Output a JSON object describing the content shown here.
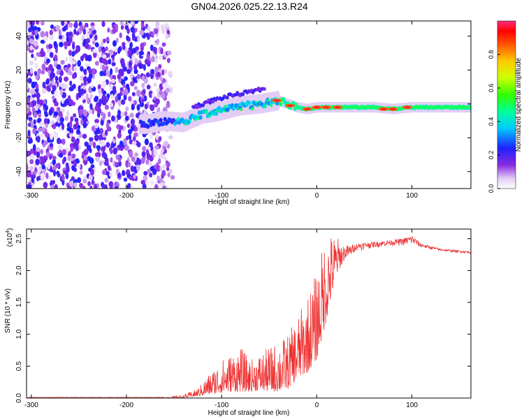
{
  "title": "GN04.2026.025.22.13.R24",
  "chart_data": [
    {
      "type": "heatmap",
      "name": "spectrogram",
      "xlabel": "Height of straight line (km)",
      "ylabel": "Frequency (Hz)",
      "xlim": [
        -305,
        162
      ],
      "ylim": [
        -50,
        49
      ],
      "xticks": [
        -300,
        -200,
        -100,
        0,
        100
      ],
      "yticks": [
        -40,
        -20,
        0,
        20,
        40
      ],
      "colorbar": {
        "label": "Normalized spectral amplitude",
        "range": [
          0,
          1
        ],
        "ticks": [
          0.0,
          0.2,
          0.4,
          0.6,
          0.8
        ],
        "tick_labels": [
          "0.0",
          "0.2",
          "0.4",
          "0.6",
          "0.8"
        ]
      },
      "noise_region_x": [
        -305,
        -150
      ],
      "trend": {
        "x": [
          -180,
          -160,
          -140,
          -120,
          -100,
          -80,
          -60,
          -40,
          -30,
          -20,
          -10,
          0,
          20,
          40,
          60,
          80,
          100,
          120,
          140,
          162
        ],
        "y": [
          -12,
          -10,
          -11,
          -6,
          -4,
          -1,
          0,
          2,
          0,
          -2,
          -3,
          -2,
          -2,
          -2,
          -2,
          -3,
          -2,
          -2,
          -2,
          -2
        ]
      },
      "secondary_trend": {
        "x": [
          -130,
          -110,
          -90,
          -70,
          -55
        ],
        "y": [
          -2,
          2,
          5,
          7,
          9
        ]
      },
      "hot_spots": [
        {
          "x": -10,
          "y": -3
        },
        {
          "x": 0,
          "y": -2
        },
        {
          "x": 10,
          "y": -2
        },
        {
          "x": 22,
          "y": -2
        },
        {
          "x": 70,
          "y": -3
        },
        {
          "x": 80,
          "y": -3
        },
        {
          "x": 95,
          "y": -2
        },
        {
          "x": -42,
          "y": 2
        },
        {
          "x": -28,
          "y": -1
        }
      ]
    },
    {
      "type": "line",
      "name": "snr",
      "xlabel": "Height of straight line (km)",
      "ylabel": "SNR (10 * v/v)",
      "scale_label": "(x10",
      "scale_exp": "4",
      "xlim": [
        -305,
        162
      ],
      "ylim": [
        0,
        2.65
      ],
      "xticks": [
        -300,
        -200,
        -100,
        0,
        100
      ],
      "yticks": [
        0.0,
        0.5,
        1.0,
        1.5,
        2.0,
        2.5
      ],
      "ytick_labels": [
        "0.0",
        "0.5",
        "1.0",
        "1.5",
        "2.0",
        "2.5"
      ],
      "color": "#ee3333",
      "baseline": {
        "x": [
          -305,
          -160
        ],
        "y": 0.01
      },
      "envelope": {
        "x": [
          -160,
          -140,
          -125,
          -115,
          -100,
          -90,
          -80,
          -70,
          -60,
          -50,
          -40,
          -30,
          -20,
          -10,
          0,
          10,
          20,
          30,
          40,
          60,
          80,
          90,
          100,
          110,
          130,
          162
        ],
        "low": [
          0.0,
          0.0,
          0.03,
          0.05,
          0.08,
          0.1,
          0.1,
          0.1,
          0.12,
          0.1,
          0.1,
          0.15,
          0.3,
          0.4,
          0.6,
          1.2,
          1.9,
          2.2,
          2.3,
          2.35,
          2.38,
          2.38,
          2.38,
          2.35,
          2.3,
          2.26
        ],
        "high": [
          0.01,
          0.05,
          0.15,
          0.35,
          0.6,
          0.7,
          0.8,
          0.6,
          0.7,
          0.8,
          0.9,
          1.0,
          1.3,
          1.6,
          2.0,
          2.62,
          2.55,
          2.4,
          2.42,
          2.45,
          2.48,
          2.5,
          2.55,
          2.42,
          2.34,
          2.3
        ]
      }
    }
  ]
}
